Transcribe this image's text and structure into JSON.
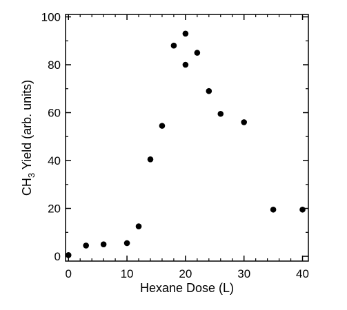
{
  "chart_data": {
    "type": "scatter",
    "title": "",
    "xlabel": "Hexane Dose (L)",
    "ylabel": {
      "prefix": "CH",
      "subscript": "3",
      "suffix": " Yield (arb. units)"
    },
    "xlim": [
      -0.5,
      41
    ],
    "ylim": [
      -2,
      101
    ],
    "x_ticks": [
      0,
      10,
      20,
      30,
      40
    ],
    "y_ticks": [
      0,
      20,
      40,
      60,
      80,
      100
    ],
    "x_minor_step": 2,
    "y_minor_step": 10,
    "grid": false,
    "legend": "none",
    "marker_color": "#000000",
    "series": [
      {
        "x": [
          0,
          3,
          6,
          10,
          12,
          14,
          16,
          18,
          20,
          20,
          22,
          24,
          26,
          30,
          35,
          40
        ],
        "y": [
          0.5,
          4.5,
          5,
          5.5,
          12.5,
          40.5,
          54.5,
          88,
          80,
          93,
          85,
          69,
          59.5,
          56,
          19.5,
          19.5
        ]
      }
    ]
  }
}
